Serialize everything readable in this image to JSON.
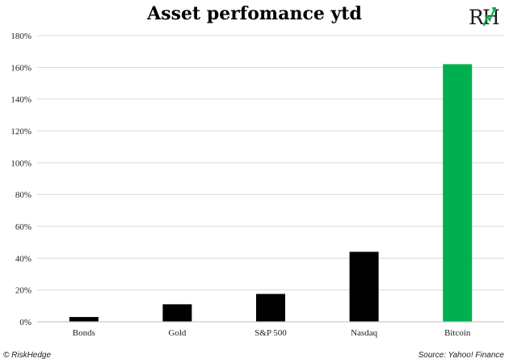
{
  "chart_data": {
    "type": "bar",
    "title": "Asset perfomance ytd",
    "categories": [
      "Bonds",
      "Gold",
      "S&P 500",
      "Nasdaq",
      "Bitcoin"
    ],
    "values": [
      3,
      11,
      17.5,
      44,
      162
    ],
    "bar_colors": [
      "#000000",
      "#000000",
      "#000000",
      "#000000",
      "#00b050"
    ],
    "ylim": [
      0,
      180
    ],
    "ytick_step": 20,
    "ytick_suffix": "%",
    "xlabel": "",
    "ylabel": "",
    "grid": true,
    "legend": "none"
  },
  "logo": {
    "text": "RH",
    "colors": {
      "letters": "#1a1a1a",
      "accent": "#00b050"
    }
  },
  "footer": {
    "copyright": "© RiskHedge",
    "source": "Source: Yahoo! Finance"
  }
}
